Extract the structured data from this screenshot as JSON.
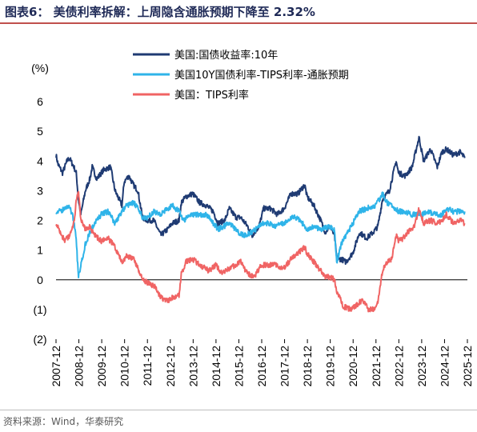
{
  "header": {
    "title": "图表6：   美债利率拆解：上周隐含通胀预期下降至 2.32%"
  },
  "footer": {
    "source": "资料来源：Wind，华泰研究"
  },
  "chart_data": {
    "type": "line",
    "ylabel": "(%)",
    "ylim": [
      -2,
      6
    ],
    "yticks": [
      6,
      5,
      4,
      3,
      2,
      1,
      0,
      -1,
      -2
    ],
    "ytick_labels": [
      "6",
      "5",
      "4",
      "3",
      "2",
      "1",
      "0",
      "(1)",
      "(2)"
    ],
    "xlim": [
      2007.917,
      2025.917
    ],
    "xticks": [
      2007.917,
      2008.917,
      2009.917,
      2010.917,
      2011.917,
      2012.917,
      2013.917,
      2014.917,
      2015.917,
      2016.917,
      2017.917,
      2018.917,
      2019.917,
      2020.917,
      2021.917,
      2022.917,
      2023.917,
      2024.917,
      2025.917
    ],
    "xtick_labels": [
      "2007-12",
      "2008-12",
      "2009-12",
      "2010-12",
      "2011-12",
      "2012-12",
      "2013-12",
      "2014-12",
      "2015-12",
      "2016-12",
      "2017-12",
      "2018-12",
      "2019-12",
      "2020-12",
      "2021-12",
      "2022-12",
      "2023-12",
      "2024-12",
      "2025-12"
    ],
    "legend_position": "top",
    "colors": {
      "nominal": "#1f3b73",
      "breakeven": "#2fb4e9",
      "tips": "#f06464"
    },
    "series": [
      {
        "name": "美国:国债收益率:10年",
        "key": "nominal",
        "x": [
          2007.92,
          2008.0,
          2008.2,
          2008.4,
          2008.5,
          2008.7,
          2008.8,
          2008.9,
          2009.0,
          2009.2,
          2009.4,
          2009.5,
          2009.7,
          2009.9,
          2010.0,
          2010.3,
          2010.5,
          2010.8,
          2010.9,
          2011.1,
          2011.3,
          2011.5,
          2011.7,
          2011.9,
          2012.2,
          2012.5,
          2012.8,
          2013.0,
          2013.3,
          2013.4,
          2013.6,
          2013.9,
          2014.2,
          2014.5,
          2014.8,
          2015.0,
          2015.3,
          2015.5,
          2015.8,
          2016.0,
          2016.3,
          2016.5,
          2016.8,
          2017.0,
          2017.3,
          2017.6,
          2017.9,
          2018.2,
          2018.5,
          2018.8,
          2018.9,
          2019.2,
          2019.5,
          2019.7,
          2019.9,
          2020.1,
          2020.2,
          2020.4,
          2020.6,
          2020.9,
          2021.2,
          2021.5,
          2021.8,
          2022.0,
          2022.2,
          2022.5,
          2022.8,
          2022.9,
          2023.2,
          2023.5,
          2023.8,
          2024.0,
          2024.3,
          2024.6,
          2024.8,
          2025.0,
          2025.3,
          2025.6,
          2025.8
        ],
        "y": [
          4.2,
          3.9,
          3.6,
          4.0,
          4.1,
          3.8,
          3.6,
          2.7,
          2.2,
          3.0,
          3.4,
          3.8,
          3.4,
          3.6,
          3.7,
          3.8,
          3.0,
          2.5,
          3.3,
          3.5,
          3.2,
          3.0,
          2.1,
          2.0,
          2.0,
          1.5,
          1.7,
          1.9,
          2.0,
          2.6,
          2.8,
          2.9,
          2.6,
          2.5,
          2.3,
          1.9,
          2.0,
          2.4,
          2.1,
          2.1,
          1.8,
          1.5,
          1.8,
          2.4,
          2.4,
          2.2,
          2.4,
          2.9,
          2.9,
          3.2,
          2.8,
          2.5,
          2.0,
          1.6,
          1.8,
          1.5,
          0.7,
          0.7,
          0.6,
          0.9,
          1.6,
          1.4,
          1.6,
          1.8,
          2.7,
          3.0,
          4.0,
          3.6,
          3.5,
          3.8,
          4.8,
          4.0,
          4.4,
          3.8,
          4.3,
          4.4,
          4.2,
          4.3,
          4.1
        ]
      },
      {
        "name": "美国10Y国债利率-TIPS利率-通胀预期",
        "key": "breakeven",
        "x": [
          2007.92,
          2008.1,
          2008.3,
          2008.5,
          2008.7,
          2008.8,
          2008.9,
          2009.0,
          2009.2,
          2009.4,
          2009.6,
          2009.9,
          2010.2,
          2010.5,
          2010.8,
          2011.0,
          2011.3,
          2011.5,
          2011.7,
          2011.9,
          2012.2,
          2012.5,
          2012.8,
          2013.0,
          2013.3,
          2013.5,
          2013.8,
          2014.0,
          2014.5,
          2014.9,
          2015.0,
          2015.5,
          2015.9,
          2016.1,
          2016.5,
          2016.9,
          2017.2,
          2017.5,
          2017.9,
          2018.2,
          2018.5,
          2018.9,
          2019.2,
          2019.5,
          2019.9,
          2020.1,
          2020.2,
          2020.4,
          2020.7,
          2020.9,
          2021.2,
          2021.5,
          2021.9,
          2022.2,
          2022.4,
          2022.6,
          2022.9,
          2023.2,
          2023.5,
          2023.9,
          2024.2,
          2024.5,
          2024.8,
          2025.0,
          2025.3,
          2025.6,
          2025.8
        ],
        "y": [
          2.3,
          2.3,
          2.4,
          2.5,
          2.0,
          1.3,
          0.1,
          0.5,
          1.2,
          1.6,
          1.9,
          2.2,
          2.3,
          1.9,
          2.3,
          2.5,
          2.6,
          2.4,
          2.1,
          2.1,
          2.3,
          2.2,
          2.4,
          2.5,
          2.3,
          2.0,
          2.2,
          2.2,
          2.2,
          1.8,
          1.7,
          1.9,
          1.6,
          1.5,
          1.6,
          1.9,
          1.9,
          1.8,
          1.9,
          2.1,
          2.1,
          1.7,
          1.8,
          1.7,
          1.8,
          1.7,
          0.6,
          1.2,
          1.6,
          1.9,
          2.3,
          2.4,
          2.5,
          2.9,
          2.6,
          2.5,
          2.3,
          2.3,
          2.2,
          2.2,
          2.3,
          2.2,
          2.2,
          2.4,
          2.3,
          2.3,
          2.3
        ]
      },
      {
        "name": "美国：TIPS利率",
        "key": "tips",
        "x": [
          2007.92,
          2008.1,
          2008.3,
          2008.5,
          2008.7,
          2008.8,
          2008.9,
          2009.0,
          2009.2,
          2009.4,
          2009.6,
          2009.9,
          2010.2,
          2010.5,
          2010.8,
          2011.0,
          2011.3,
          2011.5,
          2011.7,
          2011.9,
          2012.2,
          2012.5,
          2012.8,
          2013.0,
          2013.3,
          2013.4,
          2013.6,
          2013.9,
          2014.2,
          2014.6,
          2014.9,
          2015.2,
          2015.5,
          2015.8,
          2016.0,
          2016.3,
          2016.6,
          2016.9,
          2017.2,
          2017.5,
          2017.9,
          2018.2,
          2018.5,
          2018.8,
          2018.9,
          2019.2,
          2019.5,
          2019.7,
          2019.9,
          2020.1,
          2020.2,
          2020.5,
          2020.8,
          2021.0,
          2021.3,
          2021.6,
          2021.9,
          2022.0,
          2022.2,
          2022.4,
          2022.6,
          2022.8,
          2022.9,
          2023.1,
          2023.3,
          2023.6,
          2023.8,
          2024.0,
          2024.3,
          2024.6,
          2024.8,
          2025.0,
          2025.3,
          2025.6,
          2025.8
        ],
        "y": [
          1.9,
          1.6,
          1.3,
          1.5,
          1.9,
          2.6,
          3.0,
          2.0,
          1.7,
          1.8,
          1.5,
          1.3,
          1.4,
          1.1,
          0.6,
          0.8,
          0.7,
          0.4,
          0.0,
          -0.1,
          -0.2,
          -0.6,
          -0.7,
          -0.6,
          -0.5,
          0.2,
          0.6,
          0.7,
          0.5,
          0.3,
          0.5,
          0.2,
          0.4,
          0.5,
          0.6,
          0.2,
          0.1,
          0.5,
          0.5,
          0.5,
          0.4,
          0.7,
          0.9,
          1.1,
          0.9,
          0.6,
          0.3,
          0.1,
          0.1,
          0.0,
          -0.4,
          -0.9,
          -1.0,
          -0.9,
          -0.7,
          -1.0,
          -1.0,
          -0.7,
          0.3,
          0.6,
          0.7,
          1.5,
          1.3,
          1.4,
          1.6,
          1.8,
          2.4,
          1.9,
          2.0,
          1.9,
          2.0,
          2.2,
          1.9,
          2.0,
          1.9
        ]
      }
    ]
  }
}
